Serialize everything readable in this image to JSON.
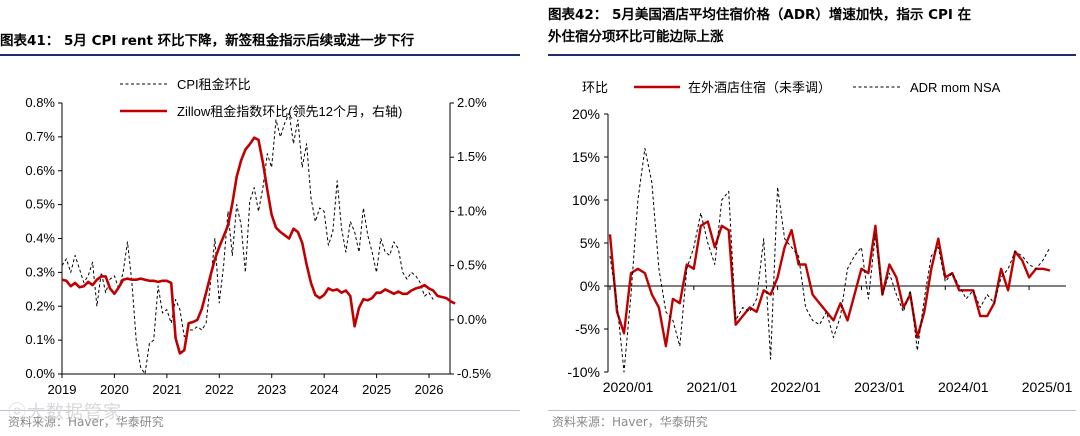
{
  "left": {
    "title": "图表41： 5月 CPI rent 环比下降，新签租金指示后续或进一步下行",
    "source": "资料来源：Haver，华泰研究",
    "watermark": "大数据管家",
    "chart_data": {
      "type": "line",
      "x_ticks": [
        "2019",
        "2020",
        "2021",
        "2022",
        "2023",
        "2024",
        "2025",
        "2026"
      ],
      "xlim": [
        2019,
        2026.4
      ],
      "ylim_left": [
        0,
        0.8
      ],
      "ylim_right": [
        -0.5,
        2.0
      ],
      "y_left_ticks": [
        "0.0%",
        "0.1%",
        "0.2%",
        "0.3%",
        "0.4%",
        "0.5%",
        "0.6%",
        "0.7%",
        "0.8%"
      ],
      "y_right_ticks": [
        "-0.5%",
        "0.0%",
        "0.5%",
        "1.0%",
        "1.5%",
        "2.0%"
      ],
      "series": [
        {
          "name": "CPI租金环比",
          "axis": "left",
          "style": "dashed",
          "color": "#000000",
          "values": [
            0.32,
            0.34,
            0.3,
            0.35,
            0.31,
            0.27,
            0.29,
            0.33,
            0.2,
            0.3,
            0.24,
            0.28,
            0.29,
            0.25,
            0.3,
            0.39,
            0.27,
            0.1,
            0.02,
            0.0,
            0.09,
            0.1,
            0.26,
            0.18,
            0.19,
            0.15,
            0.22,
            0.19,
            0.11,
            0.13,
            0.13,
            0.14,
            0.13,
            0.15,
            0.27,
            0.4,
            0.21,
            0.32,
            0.48,
            0.35,
            0.5,
            0.44,
            0.3,
            0.51,
            0.55,
            0.48,
            0.55,
            0.65,
            0.61,
            0.75,
            0.7,
            0.74,
            0.77,
            0.68,
            0.75,
            0.61,
            0.68,
            0.52,
            0.45,
            0.49,
            0.48,
            0.38,
            0.42,
            0.57,
            0.43,
            0.36,
            0.45,
            0.42,
            0.36,
            0.49,
            0.41,
            0.36,
            0.3,
            0.4,
            0.36,
            0.35,
            0.39,
            0.37,
            0.3,
            0.28,
            0.3,
            0.29,
            0.27,
            0.23,
            0.24,
            0.22
          ],
          "x_start": 2019.0,
          "x_step": 0.0833
        },
        {
          "name": "Zillow租金指数环比(领先12个月，右轴)",
          "axis": "right",
          "style": "solid",
          "color": "#c00000",
          "values": [
            0.37,
            0.36,
            0.31,
            0.34,
            0.3,
            0.31,
            0.35,
            0.32,
            0.37,
            0.4,
            0.4,
            0.29,
            0.24,
            0.3,
            0.37,
            0.38,
            0.37,
            0.37,
            0.38,
            0.37,
            0.36,
            0.36,
            0.35,
            0.36,
            0.36,
            0.34,
            -0.17,
            -0.31,
            -0.28,
            -0.03,
            -0.02,
            0.0,
            0.1,
            0.25,
            0.41,
            0.56,
            0.67,
            0.77,
            0.87,
            1.07,
            1.32,
            1.47,
            1.57,
            1.62,
            1.68,
            1.66,
            1.45,
            1.2,
            0.97,
            0.85,
            0.81,
            0.78,
            0.75,
            0.84,
            0.81,
            0.71,
            0.51,
            0.34,
            0.23,
            0.2,
            0.23,
            0.29,
            0.27,
            0.28,
            0.25,
            0.27,
            0.22,
            -0.06,
            0.11,
            0.19,
            0.18,
            0.2,
            0.25,
            0.25,
            0.28,
            0.26,
            0.24,
            0.26,
            0.24,
            0.24,
            0.27,
            0.29,
            0.3,
            0.32,
            0.29,
            0.27,
            0.22,
            0.21,
            0.2,
            0.17,
            0.15
          ],
          "x_start": 2019.0,
          "x_step": 0.0833
        }
      ]
    }
  },
  "right": {
    "title_line1": "图表42： 5月美国酒店平均住宿价格（ADR）增速加快，指示 CPI 在",
    "title_line2": "外住宿分项环比可能边际上涨",
    "axis_unit": "环比",
    "source": "资料来源：Haver，华泰研究",
    "chart_data": {
      "type": "line",
      "x_ticks": [
        "2020/01",
        "2021/01",
        "2022/01",
        "2023/01",
        "2024/01",
        "2025/01"
      ],
      "xlim": [
        0,
        65
      ],
      "ylim": [
        -10,
        20
      ],
      "y_ticks": [
        "-10%",
        "-5%",
        "0%",
        "5%",
        "10%",
        "15%",
        "20%"
      ],
      "series": [
        {
          "name": "在外酒店住宿（未季调）",
          "style": "solid",
          "color": "#c00000",
          "values": [
            6.0,
            -3.0,
            -5.5,
            1.5,
            2.0,
            1.5,
            -1.0,
            -2.5,
            -7.0,
            -1.5,
            -2.0,
            2.5,
            2.0,
            7.0,
            7.5,
            4.5,
            7.0,
            6.5,
            -4.5,
            -3.5,
            -2.5,
            -3.0,
            -0.5,
            -1.0,
            1.0,
            4.5,
            6.5,
            2.5,
            2.5,
            -1.0,
            -2.0,
            -3.0,
            -4.0,
            -2.0,
            -4.0,
            -1.0,
            2.0,
            1.5,
            7.0,
            -1.0,
            2.5,
            1.0,
            -2.5,
            -1.0,
            -6.0,
            -3.0,
            2.0,
            5.5,
            1.0,
            1.5,
            -0.5,
            -0.5,
            -0.5,
            -3.5,
            -3.5,
            -2.0,
            2.0,
            -0.5,
            4.0,
            3.0,
            1.0,
            2.0,
            2.0,
            1.8
          ],
          "x_start": 0,
          "x_step": 1
        },
        {
          "name": "ADR mom NSA",
          "style": "dashed",
          "color": "#000000",
          "values": [
            3.5,
            -2.0,
            -10.0,
            -1.0,
            10.0,
            16.0,
            12.0,
            2.0,
            -3.0,
            -4.0,
            -7.0,
            2.0,
            4.5,
            8.5,
            5.0,
            2.5,
            10.0,
            11.0,
            -4.0,
            -2.5,
            -3.0,
            -1.5,
            5.5,
            -8.5,
            11.5,
            5.5,
            4.5,
            3.5,
            -2.5,
            -4.0,
            -4.5,
            -3.0,
            -6.0,
            -3.5,
            2.0,
            3.5,
            4.5,
            -1.5,
            6.0,
            -1.0,
            1.5,
            -1.0,
            -3.0,
            -0.5,
            -7.5,
            -1.5,
            3.5,
            4.5,
            0.5,
            1.5,
            0.0,
            -1.5,
            -0.5,
            -2.5,
            -1.0,
            -2.0,
            1.0,
            2.0,
            4.0,
            3.5,
            2.5,
            2.0,
            3.0,
            4.5
          ],
          "x_start": 0,
          "x_step": 1
        }
      ]
    }
  }
}
